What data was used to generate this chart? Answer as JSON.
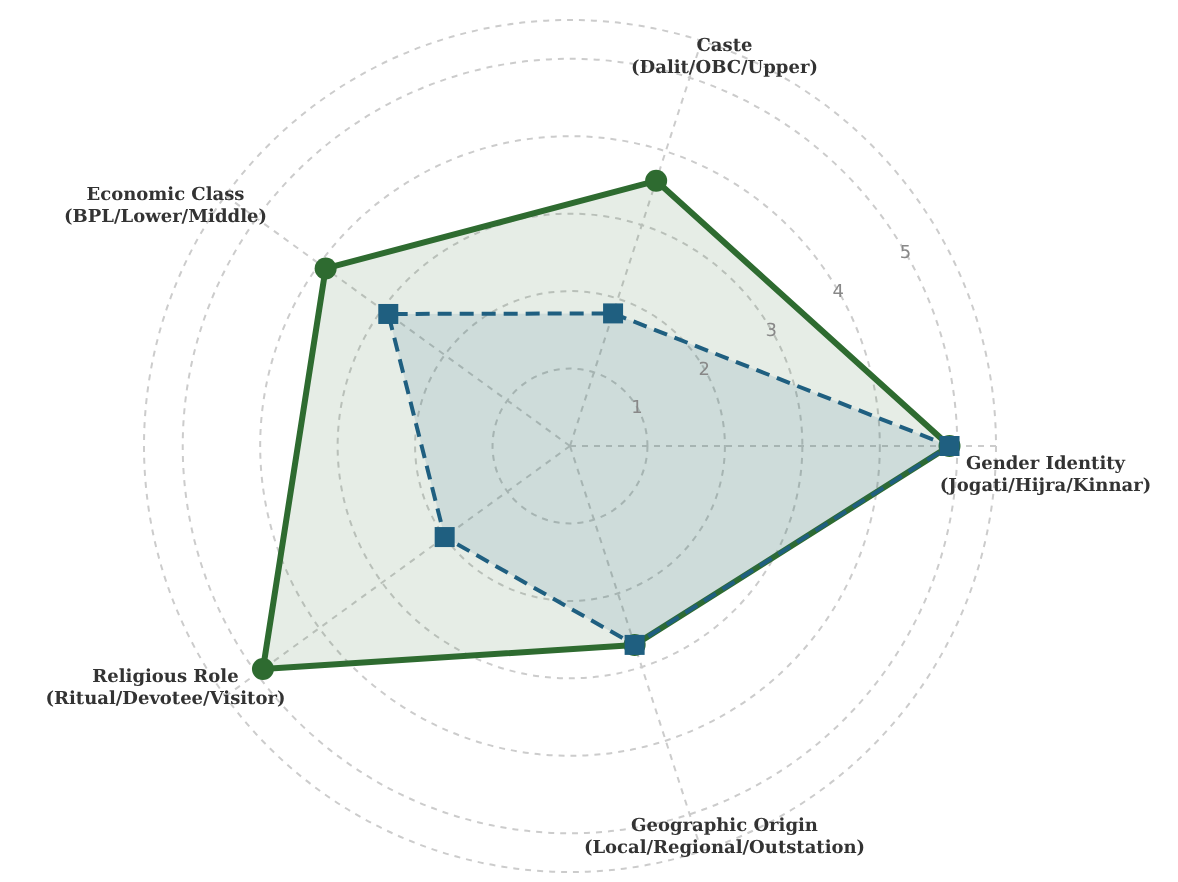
{
  "chart_data": {
    "type": "radar",
    "categories": [
      "Caste\n(Dalit/OBC/Upper)",
      "Gender Identity\n(Jogati/Hijra/Kinnar)",
      "Geographic Origin\n(Local/Regional/Outstation)",
      "Religious Role\n(Ritual/Devotee/Visitor)",
      "Economic Class\n(BPL/Lower/Middle)"
    ],
    "series": [
      {
        "color": "#2e6b30",
        "values": [
          3.6,
          4.9,
          2.7,
          4.9,
          3.9
        ],
        "marker": "circle",
        "line_style": "solid"
      },
      {
        "color": "#1f5f80",
        "values": [
          1.8,
          4.9,
          2.7,
          2.0,
          2.9
        ],
        "marker": "square",
        "line_style": "dashed"
      }
    ],
    "ylim": [
      0,
      5.5
    ],
    "yticks": [
      1,
      2,
      3,
      4,
      5
    ],
    "grid": true,
    "legend": false
  }
}
